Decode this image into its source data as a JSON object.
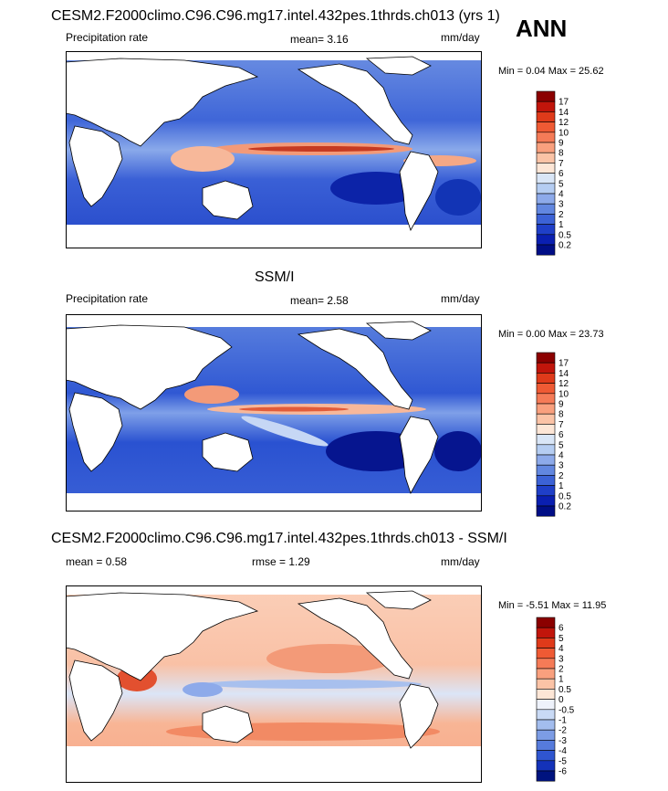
{
  "season": "ANN",
  "panels": [
    {
      "title": "CESM2.F2000climo.C96.C96.mg17.intel.432pes.1thrds.ch013 (yrs 1)",
      "left_label": "Precipitation rate",
      "mid_label": "mean=   3.16",
      "units": "mm/day",
      "minmax": "Min =   0.04 Max =  25.62",
      "levels": [
        "17",
        "14",
        "12",
        "10",
        "9",
        "8",
        "7",
        "6",
        "5",
        "4",
        "3",
        "2",
        "1",
        "0.5",
        "0.2"
      ],
      "colors": [
        "#8b0000",
        "#c1150b",
        "#df3a1a",
        "#ef5a34",
        "#f57b57",
        "#f9a07e",
        "#fbc3a6",
        "#fde6d6",
        "#d9e6f7",
        "#b5cdf2",
        "#8daaea",
        "#6287e0",
        "#3c62d6",
        "#1f3fc8",
        "#0a1fb1",
        "#000e86"
      ]
    },
    {
      "title": "SSM/I",
      "left_label": "Precipitation rate",
      "mid_label": "mean=   2.58",
      "units": "mm/day",
      "minmax": "Min =   0.00 Max =  23.73",
      "levels": [
        "17",
        "14",
        "12",
        "10",
        "9",
        "8",
        "7",
        "6",
        "5",
        "4",
        "3",
        "2",
        "1",
        "0.5",
        "0.2"
      ],
      "colors": [
        "#8b0000",
        "#c1150b",
        "#df3a1a",
        "#ef5a34",
        "#f57b57",
        "#f9a07e",
        "#fbc3a6",
        "#fde6d6",
        "#d9e6f7",
        "#b5cdf2",
        "#8daaea",
        "#6287e0",
        "#3c62d6",
        "#1f3fc8",
        "#0a1fb1",
        "#000e86"
      ]
    },
    {
      "title": "CESM2.F2000climo.C96.C96.mg17.intel.432pes.1thrds.ch013 - SSM/I",
      "left_label": "mean =   0.58",
      "mid_label": "rmse =   1.29",
      "units": "mm/day",
      "minmax": "Min =  -5.51 Max =  11.95",
      "levels": [
        "6",
        "5",
        "4",
        "3",
        "2",
        "1",
        "0.5",
        "0",
        "-0.5",
        "-1",
        "-2",
        "-3",
        "-4",
        "-5",
        "-6"
      ],
      "colors": [
        "#8b0000",
        "#c1150b",
        "#df3a1a",
        "#ef5a34",
        "#f57b57",
        "#f9a07e",
        "#fbc3a6",
        "#fde6d6",
        "#eef2fb",
        "#c9daf5",
        "#a3bdee",
        "#7c9ce5",
        "#567bdc",
        "#2f55cf",
        "#1432b9",
        "#00137f"
      ]
    }
  ]
}
